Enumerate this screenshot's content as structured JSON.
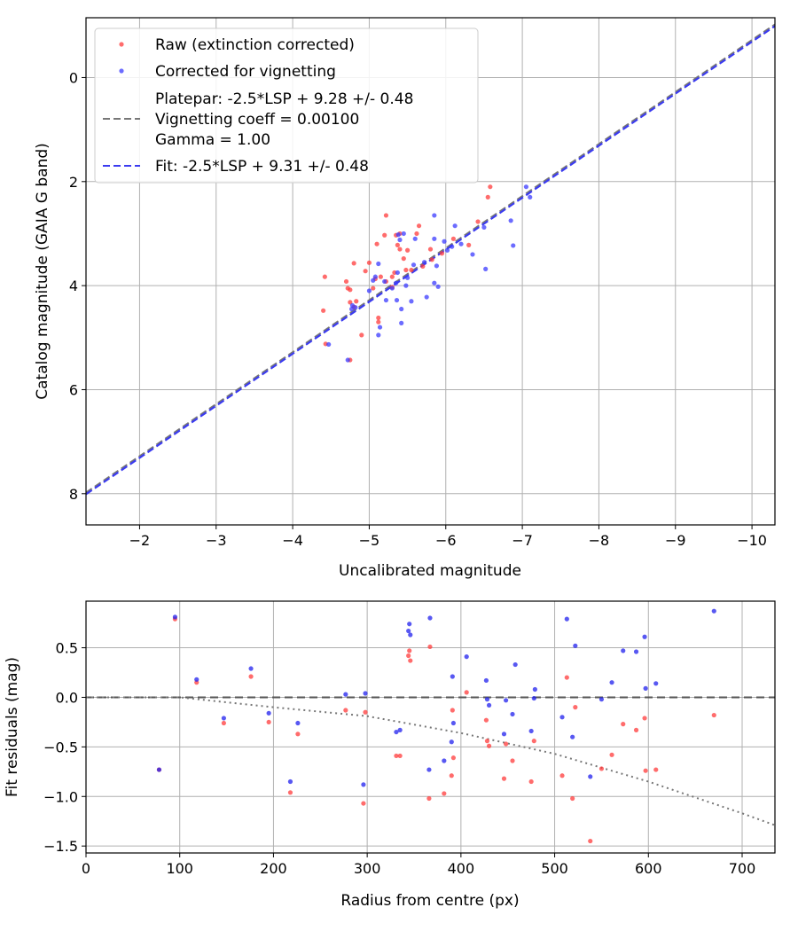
{
  "chart_data": [
    {
      "type": "scatter",
      "title": "",
      "xlabel": "Uncalibrated magnitude",
      "ylabel": "Catalog magnitude (GAIA G band)",
      "xlim": [
        -1.3,
        -10.3
      ],
      "ylim": [
        8.6,
        -1.15
      ],
      "x_inverted": true,
      "y_inverted": true,
      "grid": true,
      "legend_position": "top-left",
      "x_ticks": [
        -2,
        -3,
        -4,
        -5,
        -6,
        -7,
        -8,
        -9,
        -10
      ],
      "x_tick_labels": [
        "−2",
        "−3",
        "−4",
        "−5",
        "−6",
        "−7",
        "−8",
        "−9",
        "−10"
      ],
      "y_ticks": [
        0,
        2,
        4,
        6,
        8
      ],
      "y_tick_labels": [
        "0",
        "2",
        "4",
        "6",
        "8"
      ],
      "series": [
        {
          "name": "Raw (extinction corrected)",
          "kind": "scatter",
          "color": "#ff3b3b",
          "points": [
            [
              -4.42,
              3.83
            ],
            [
              -4.4,
              4.48
            ],
            [
              -4.43,
              5.12
            ],
            [
              -4.7,
              3.92
            ],
            [
              -4.72,
              4.05
            ],
            [
              -4.75,
              4.08
            ],
            [
              -4.8,
              3.57
            ],
            [
              -4.75,
              4.32
            ],
            [
              -4.8,
              4.41
            ],
            [
              -4.83,
              4.3
            ],
            [
              -4.75,
              5.43
            ],
            [
              -4.9,
              4.95
            ],
            [
              -4.95,
              3.72
            ],
            [
              -5.0,
              3.56
            ],
            [
              -5.05,
              4.05
            ],
            [
              -5.08,
              3.87
            ],
            [
              -5.1,
              3.2
            ],
            [
              -5.12,
              4.62
            ],
            [
              -5.12,
              4.7
            ],
            [
              -5.15,
              3.83
            ],
            [
              -5.2,
              3.03
            ],
            [
              -5.22,
              2.65
            ],
            [
              -5.22,
              3.92
            ],
            [
              -5.3,
              3.83
            ],
            [
              -5.3,
              4.03
            ],
            [
              -5.33,
              3.75
            ],
            [
              -5.35,
              3.03
            ],
            [
              -5.37,
              3.22
            ],
            [
              -5.4,
              3.0
            ],
            [
              -5.4,
              3.3
            ],
            [
              -5.45,
              3.48
            ],
            [
              -5.48,
              3.7
            ],
            [
              -5.5,
              3.32
            ],
            [
              -5.55,
              3.7
            ],
            [
              -5.62,
              3.0
            ],
            [
              -5.65,
              2.85
            ],
            [
              -5.7,
              3.63
            ],
            [
              -5.8,
              3.3
            ],
            [
              -5.82,
              3.5
            ],
            [
              -5.95,
              3.38
            ],
            [
              -6.1,
              3.1
            ],
            [
              -6.3,
              3.22
            ],
            [
              -6.42,
              2.77
            ],
            [
              -6.55,
              2.3
            ],
            [
              -6.58,
              2.1
            ]
          ]
        },
        {
          "name": "Corrected for vignetting",
          "kind": "scatter",
          "color": "#3b3bff",
          "points": [
            [
              -4.47,
              5.13
            ],
            [
              -4.72,
              5.43
            ],
            [
              -4.77,
              4.45
            ],
            [
              -4.78,
              4.38
            ],
            [
              -4.82,
              4.42
            ],
            [
              -5.0,
              4.1
            ],
            [
              -5.05,
              3.9
            ],
            [
              -5.08,
              3.83
            ],
            [
              -5.12,
              3.58
            ],
            [
              -5.12,
              4.95
            ],
            [
              -5.14,
              4.8
            ],
            [
              -5.2,
              3.92
            ],
            [
              -5.22,
              4.28
            ],
            [
              -5.3,
              4.05
            ],
            [
              -5.35,
              3.95
            ],
            [
              -5.36,
              4.28
            ],
            [
              -5.37,
              3.75
            ],
            [
              -5.38,
              3.02
            ],
            [
              -5.4,
              3.12
            ],
            [
              -5.42,
              4.45
            ],
            [
              -5.42,
              4.72
            ],
            [
              -5.45,
              3.0
            ],
            [
              -5.48,
              4.0
            ],
            [
              -5.5,
              3.85
            ],
            [
              -5.55,
              4.3
            ],
            [
              -5.58,
              3.6
            ],
            [
              -5.6,
              3.1
            ],
            [
              -5.72,
              3.55
            ],
            [
              -5.75,
              4.22
            ],
            [
              -5.85,
              2.65
            ],
            [
              -5.85,
              3.1
            ],
            [
              -5.85,
              3.95
            ],
            [
              -5.88,
              3.62
            ],
            [
              -5.9,
              4.02
            ],
            [
              -5.98,
              3.15
            ],
            [
              -6.02,
              3.32
            ],
            [
              -6.08,
              3.25
            ],
            [
              -6.12,
              2.85
            ],
            [
              -6.2,
              3.2
            ],
            [
              -6.35,
              3.4
            ],
            [
              -6.5,
              2.88
            ],
            [
              -6.52,
              3.68
            ],
            [
              -6.85,
              2.75
            ],
            [
              -6.88,
              3.23
            ],
            [
              -7.05,
              2.1
            ],
            [
              -7.1,
              2.3
            ]
          ]
        },
        {
          "name": "Platepar: -2.5*LSP + 9.28 +/- 0.48",
          "name_line2": "Vignetting coeff = 0.00100",
          "name_line3": "Gamma = 1.00",
          "kind": "line",
          "color": "#777777",
          "intercept": 9.28,
          "slope": 1.0
        },
        {
          "name": "Fit: -2.5*LSP + 9.31 +/- 0.48",
          "kind": "line",
          "color": "#3b3bf0",
          "intercept": 9.31,
          "slope": 1.0
        }
      ]
    },
    {
      "type": "scatter",
      "title": "",
      "xlabel": "Radius from centre (px)",
      "ylabel": "Fit residuals (mag)",
      "xlim": [
        0,
        735
      ],
      "ylim": [
        -1.57,
        0.97
      ],
      "grid": true,
      "x_ticks": [
        0,
        100,
        200,
        300,
        400,
        500,
        600,
        700
      ],
      "x_tick_labels": [
        "0",
        "100",
        "200",
        "300",
        "400",
        "500",
        "600",
        "700"
      ],
      "y_ticks": [
        0.5,
        0.0,
        -0.5,
        -1.0,
        -1.5
      ],
      "y_tick_labels": [
        "0.5",
        "0.0",
        "−0.5",
        "−1.0",
        "−1.5"
      ],
      "series": [
        {
          "name": "",
          "kind": "scatter",
          "color": "#ff3b3b",
          "points": [
            [
              78,
              -0.73
            ],
            [
              95,
              0.79
            ],
            [
              118,
              0.15
            ],
            [
              147,
              -0.26
            ],
            [
              176,
              0.21
            ],
            [
              195,
              -0.25
            ],
            [
              218,
              -0.96
            ],
            [
              226,
              -0.37
            ],
            [
              277,
              -0.13
            ],
            [
              296,
              -1.07
            ],
            [
              298,
              -0.15
            ],
            [
              331,
              -0.59
            ],
            [
              335,
              -0.59
            ],
            [
              344,
              0.42
            ],
            [
              345,
              0.47
            ],
            [
              346,
              0.37
            ],
            [
              366,
              -1.02
            ],
            [
              367,
              0.51
            ],
            [
              382,
              -0.97
            ],
            [
              390,
              -0.79
            ],
            [
              391,
              -0.13
            ],
            [
              392,
              -0.61
            ],
            [
              406,
              0.05
            ],
            [
              427,
              -0.23
            ],
            [
              428,
              -0.44
            ],
            [
              430,
              -0.49
            ],
            [
              446,
              -0.82
            ],
            [
              448,
              -0.47
            ],
            [
              455,
              -0.64
            ],
            [
              475,
              -0.85
            ],
            [
              478,
              -0.44
            ],
            [
              508,
              -0.79
            ],
            [
              513,
              0.2
            ],
            [
              519,
              -1.02
            ],
            [
              522,
              -0.1
            ],
            [
              538,
              -1.45
            ],
            [
              550,
              -0.72
            ],
            [
              561,
              -0.58
            ],
            [
              573,
              -0.27
            ],
            [
              587,
              -0.33
            ],
            [
              596,
              -0.21
            ],
            [
              597,
              -0.74
            ],
            [
              608,
              -0.73
            ],
            [
              670,
              -0.18
            ]
          ]
        },
        {
          "name": "",
          "kind": "scatter",
          "color": "#2020ee",
          "points": [
            [
              78,
              -0.73
            ],
            [
              95,
              0.81
            ],
            [
              118,
              0.18
            ],
            [
              147,
              -0.21
            ],
            [
              176,
              0.29
            ],
            [
              195,
              -0.16
            ],
            [
              218,
              -0.85
            ],
            [
              226,
              -0.26
            ],
            [
              277,
              0.03
            ],
            [
              296,
              -0.88
            ],
            [
              298,
              0.04
            ],
            [
              331,
              -0.35
            ],
            [
              335,
              -0.33
            ],
            [
              344,
              0.67
            ],
            [
              345,
              0.74
            ],
            [
              346,
              0.63
            ],
            [
              366,
              -0.73
            ],
            [
              367,
              0.8
            ],
            [
              382,
              -0.64
            ],
            [
              390,
              -0.45
            ],
            [
              391,
              0.21
            ],
            [
              392,
              -0.26
            ],
            [
              406,
              0.41
            ],
            [
              427,
              0.17
            ],
            [
              428,
              -0.02
            ],
            [
              430,
              -0.08
            ],
            [
              446,
              -0.37
            ],
            [
              448,
              -0.03
            ],
            [
              455,
              -0.17
            ],
            [
              458,
              0.33
            ],
            [
              475,
              -0.34
            ],
            [
              478,
              -0.01
            ],
            [
              479,
              0.08
            ],
            [
              508,
              -0.2
            ],
            [
              513,
              0.79
            ],
            [
              519,
              -0.4
            ],
            [
              522,
              0.52
            ],
            [
              538,
              -0.8
            ],
            [
              550,
              -0.02
            ],
            [
              561,
              0.15
            ],
            [
              573,
              0.47
            ],
            [
              587,
              0.46
            ],
            [
              596,
              0.61
            ],
            [
              597,
              0.09
            ],
            [
              608,
              0.14
            ],
            [
              670,
              0.87
            ]
          ]
        },
        {
          "name": "",
          "kind": "hline",
          "color": "#555555",
          "y": 0.0
        },
        {
          "name": "",
          "kind": "curve",
          "color": "#777777",
          "curve": [
            [
              0,
              0.0
            ],
            [
              100,
              0.0
            ],
            [
              200,
              -0.1
            ],
            [
              300,
              -0.19
            ],
            [
              400,
              -0.36
            ],
            [
              500,
              -0.57
            ],
            [
              600,
              -0.85
            ],
            [
              700,
              -1.17
            ],
            [
              735,
              -1.29
            ]
          ]
        }
      ]
    }
  ]
}
